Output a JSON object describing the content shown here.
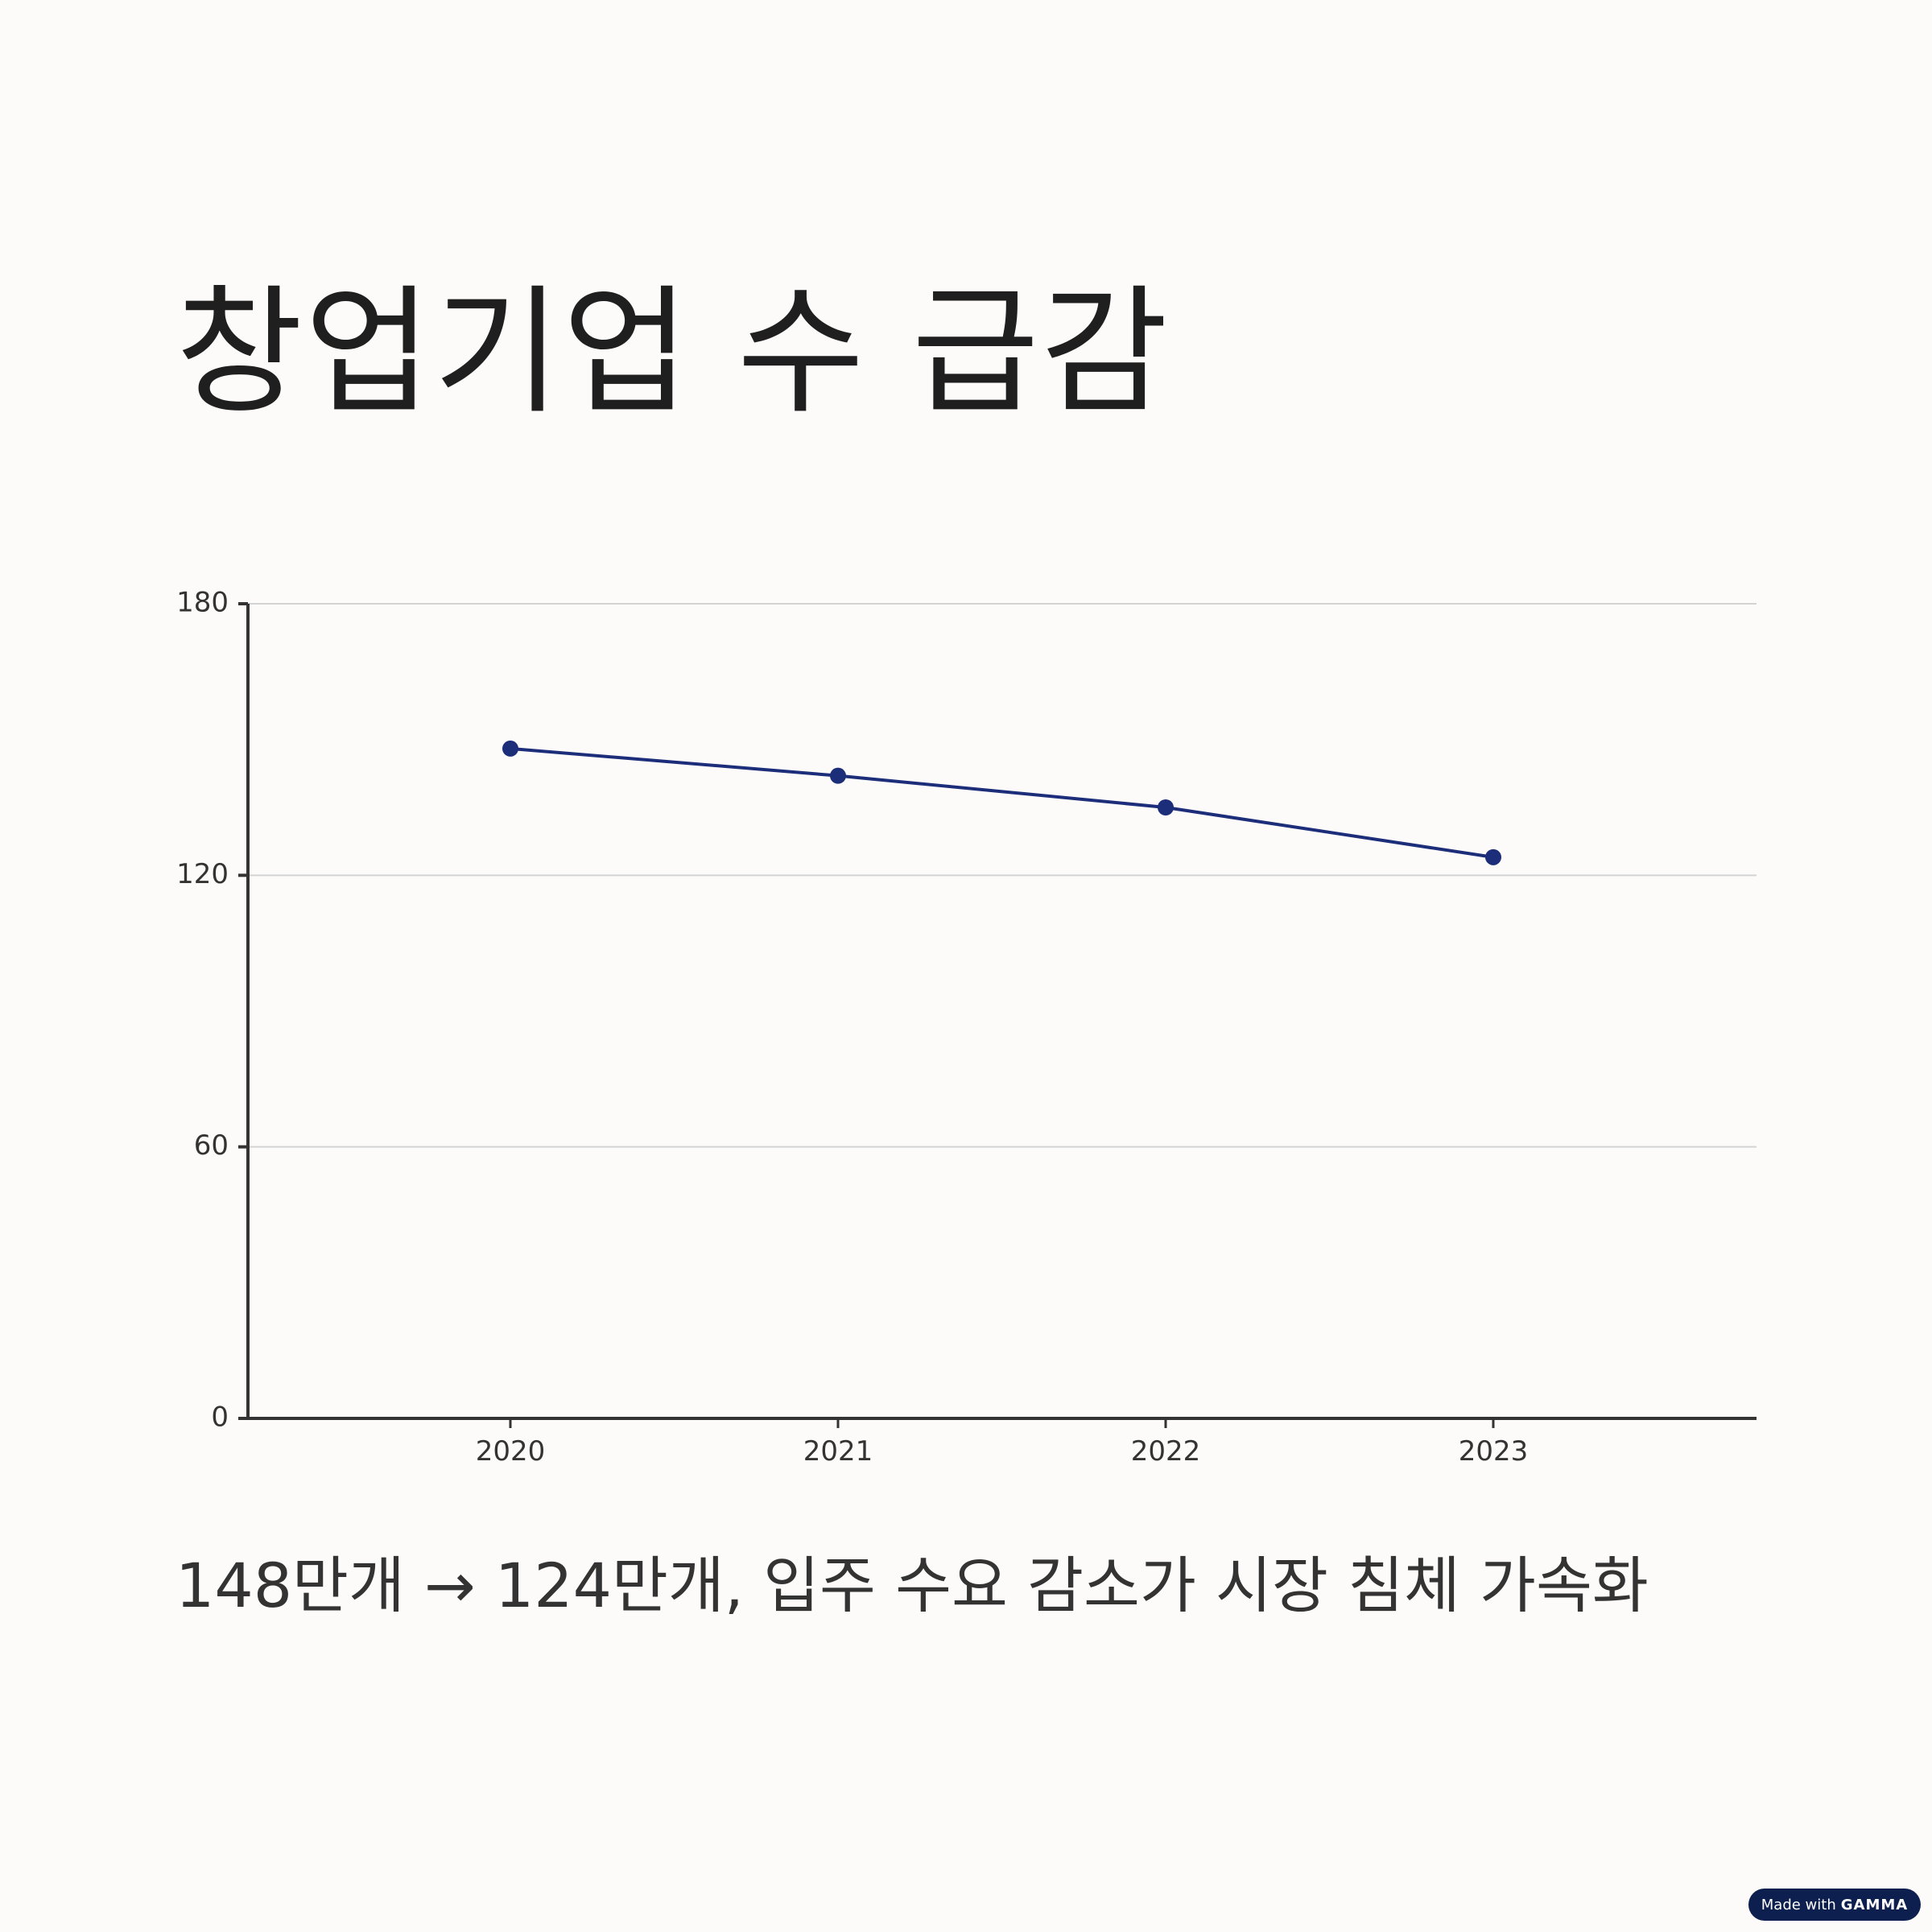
{
  "title": "창업기업 수 급감",
  "caption": "148만개 → 124만개, 입주 수요 감소가 시장 침체 가속화",
  "badge": {
    "prefix": "Made with",
    "brand": "GAMMA"
  },
  "colors": {
    "line": "#1c2d7a",
    "axis": "#333333",
    "grid": "#d3d3d3",
    "badge": "#0d1f4f"
  },
  "chart_data": {
    "type": "line",
    "categories": [
      "2020",
      "2021",
      "2022",
      "2023"
    ],
    "series": [
      {
        "values": [
          148,
          142,
          135,
          124
        ]
      }
    ],
    "ylim": [
      0,
      180
    ],
    "yticks": [
      0,
      60,
      120,
      180
    ],
    "grid": true,
    "xlabel": "",
    "ylabel": ""
  }
}
